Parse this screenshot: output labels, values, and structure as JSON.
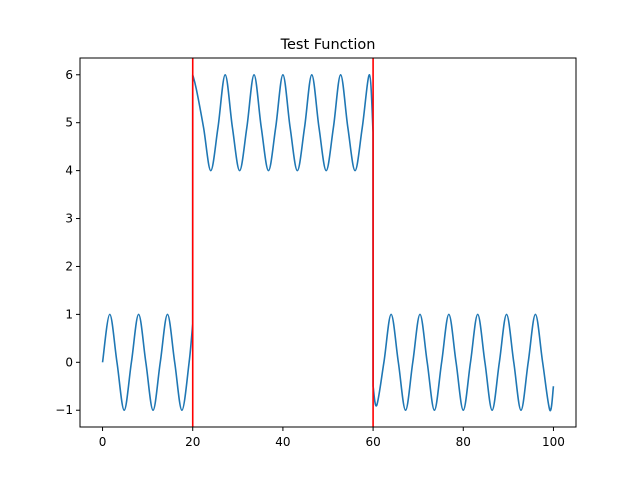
{
  "chart_data": {
    "type": "line",
    "title": "Test Function",
    "xlabel": "",
    "ylabel": "",
    "xlim": [
      -5,
      105
    ],
    "ylim": [
      -1.35,
      6.35
    ],
    "xticks": [
      0,
      20,
      40,
      60,
      80,
      100
    ],
    "yticks": [
      -1,
      0,
      1,
      2,
      3,
      4,
      5,
      6
    ],
    "grid": false,
    "legend": "none",
    "series": [
      {
        "color": "#1f77b4",
        "x": [
          0,
          1.6,
          3.2,
          4.8,
          6.4,
          8.0,
          9.6,
          11.2,
          12.8,
          14.4,
          16.0,
          17.6,
          19.2,
          19.99,
          20.0,
          20.8,
          22.4,
          24.0,
          25.6,
          27.2,
          28.8,
          30.4,
          32.0,
          33.6,
          35.2,
          36.8,
          38.4,
          40.0,
          41.6,
          43.2,
          44.8,
          46.4,
          48.0,
          49.6,
          51.2,
          52.8,
          54.4,
          56.0,
          57.6,
          59.2,
          59.99,
          60.0,
          60.8,
          62.4,
          64.0,
          65.6,
          67.2,
          68.8,
          70.4,
          72.0,
          73.6,
          75.2,
          76.8,
          78.4,
          80.0,
          81.6,
          83.2,
          84.8,
          86.4,
          88.0,
          89.6,
          91.2,
          92.8,
          94.4,
          96.0,
          97.6,
          99.2,
          100
        ],
        "y": [
          0,
          1.0,
          0.0,
          -1.0,
          0.0,
          1.0,
          0.0,
          -1.0,
          0.0,
          1.0,
          0.0,
          -1.0,
          0.0,
          0.8,
          6.0,
          5.7,
          4.9,
          4.0,
          4.9,
          6.0,
          4.9,
          4.0,
          4.9,
          6.0,
          4.9,
          4.0,
          4.9,
          6.0,
          4.9,
          4.0,
          4.9,
          6.0,
          4.9,
          4.0,
          4.9,
          6.0,
          4.9,
          4.0,
          4.9,
          6.0,
          4.8,
          -0.5,
          -0.9,
          0.0,
          1.0,
          0.0,
          -1.0,
          0.0,
          1.0,
          0.0,
          -1.0,
          0.0,
          1.0,
          0.0,
          -1.0,
          0.0,
          1.0,
          0.0,
          -1.0,
          0.0,
          1.0,
          0.0,
          -1.0,
          0.0,
          1.0,
          0.0,
          -1.0,
          -0.5
        ]
      }
    ],
    "vlines": [
      {
        "x": 20,
        "color": "#ff0000"
      },
      {
        "x": 60,
        "color": "#ff0000"
      }
    ]
  }
}
